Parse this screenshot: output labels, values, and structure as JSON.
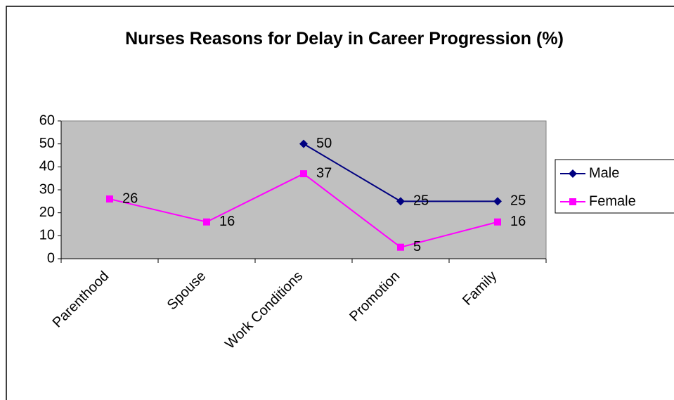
{
  "chart_data": {
    "type": "line",
    "title": "Nurses Reasons for Delay in Career Progression (%)",
    "categories": [
      "Parenthood",
      "Spouse",
      "Work Conditions",
      "Promotion",
      "Family"
    ],
    "series": [
      {
        "name": "Male",
        "color": "#000080",
        "marker": "diamond",
        "values": [
          null,
          null,
          50,
          25,
          25
        ]
      },
      {
        "name": "Female",
        "color": "#ff00ff",
        "marker": "square",
        "values": [
          26,
          16,
          37,
          5,
          16
        ]
      }
    ],
    "ylim": [
      0,
      60
    ],
    "yticks": [
      0,
      10,
      20,
      30,
      40,
      50,
      60
    ],
    "grid": false,
    "legend": "right",
    "data_labels": true
  }
}
